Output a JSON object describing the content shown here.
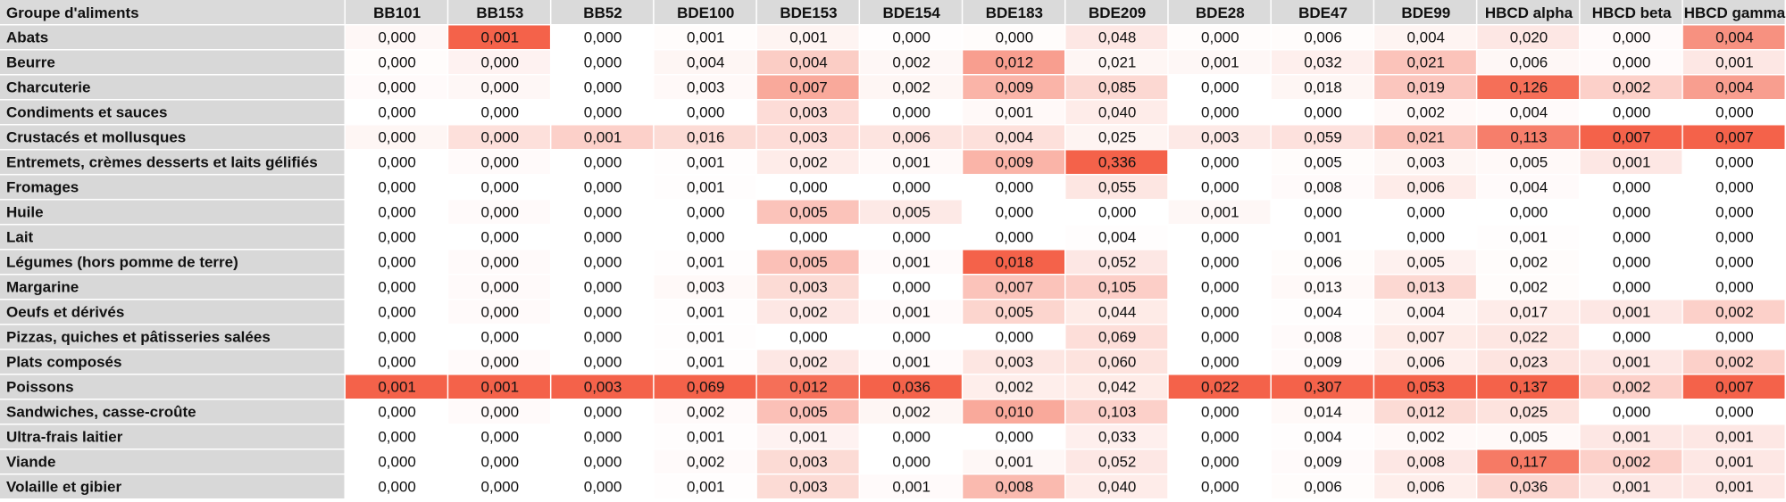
{
  "chart_data": {
    "type": "heatmap",
    "corner_label": "Groupe d'aliments",
    "columns": [
      "BB101",
      "BB153",
      "BB52",
      "BDE100",
      "BDE153",
      "BDE154",
      "BDE183",
      "BDE209",
      "BDE28",
      "BDE47",
      "BDE99",
      "HBCD alpha",
      "HBCD beta",
      "HBCD gamma"
    ],
    "rows": [
      "Abats",
      "Beurre",
      "Charcuterie",
      "Condiments et sauces",
      "Crustacés et mollusques",
      "Entremets, crèmes desserts et laits gélifiés",
      "Fromages",
      "Huile",
      "Lait",
      "Légumes (hors pomme de terre)",
      "Margarine",
      "Oeufs et dérivés",
      "Pizzas, quiches et pâtisseries salées",
      "Plats composés",
      "Poissons",
      "Sandwiches, casse-croûte",
      "Ultra-frais laitier",
      "Viande",
      "Volaille et gibier"
    ],
    "display": [
      [
        "0,000",
        "0,001",
        "0,000",
        "0,001",
        "0,001",
        "0,000",
        "0,000",
        "0,048",
        "0,000",
        "0,006",
        "0,004",
        "0,020",
        "0,000",
        "0,004"
      ],
      [
        "0,000",
        "0,000",
        "0,000",
        "0,004",
        "0,004",
        "0,002",
        "0,012",
        "0,021",
        "0,001",
        "0,032",
        "0,021",
        "0,006",
        "0,000",
        "0,001"
      ],
      [
        "0,000",
        "0,000",
        "0,000",
        "0,003",
        "0,007",
        "0,002",
        "0,009",
        "0,085",
        "0,000",
        "0,018",
        "0,019",
        "0,126",
        "0,002",
        "0,004"
      ],
      [
        "0,000",
        "0,000",
        "0,000",
        "0,000",
        "0,003",
        "0,000",
        "0,001",
        "0,040",
        "0,000",
        "0,000",
        "0,002",
        "0,004",
        "0,000",
        "0,000"
      ],
      [
        "0,000",
        "0,000",
        "0,001",
        "0,016",
        "0,003",
        "0,006",
        "0,004",
        "0,025",
        "0,003",
        "0,059",
        "0,021",
        "0,113",
        "0,007",
        "0,007"
      ],
      [
        "0,000",
        "0,000",
        "0,000",
        "0,001",
        "0,002",
        "0,001",
        "0,009",
        "0,336",
        "0,000",
        "0,005",
        "0,003",
        "0,005",
        "0,001",
        "0,000"
      ],
      [
        "0,000",
        "0,000",
        "0,000",
        "0,001",
        "0,000",
        "0,000",
        "0,000",
        "0,055",
        "0,000",
        "0,008",
        "0,006",
        "0,004",
        "0,000",
        "0,000"
      ],
      [
        "0,000",
        "0,000",
        "0,000",
        "0,000",
        "0,005",
        "0,005",
        "0,000",
        "0,000",
        "0,001",
        "0,000",
        "0,000",
        "0,000",
        "0,000",
        "0,000"
      ],
      [
        "0,000",
        "0,000",
        "0,000",
        "0,000",
        "0,000",
        "0,000",
        "0,000",
        "0,004",
        "0,000",
        "0,001",
        "0,000",
        "0,001",
        "0,000",
        "0,000"
      ],
      [
        "0,000",
        "0,000",
        "0,000",
        "0,001",
        "0,005",
        "0,001",
        "0,018",
        "0,052",
        "0,000",
        "0,006",
        "0,005",
        "0,002",
        "0,000",
        "0,000"
      ],
      [
        "0,000",
        "0,000",
        "0,000",
        "0,003",
        "0,003",
        "0,000",
        "0,007",
        "0,105",
        "0,000",
        "0,013",
        "0,013",
        "0,002",
        "0,000",
        "0,000"
      ],
      [
        "0,000",
        "0,000",
        "0,000",
        "0,001",
        "0,002",
        "0,001",
        "0,005",
        "0,044",
        "0,000",
        "0,004",
        "0,004",
        "0,017",
        "0,001",
        "0,002"
      ],
      [
        "0,000",
        "0,000",
        "0,000",
        "0,001",
        "0,000",
        "0,000",
        "0,000",
        "0,069",
        "0,000",
        "0,008",
        "0,007",
        "0,022",
        "0,000",
        "0,000"
      ],
      [
        "0,000",
        "0,000",
        "0,000",
        "0,001",
        "0,002",
        "0,001",
        "0,003",
        "0,060",
        "0,000",
        "0,009",
        "0,006",
        "0,023",
        "0,001",
        "0,002"
      ],
      [
        "0,001",
        "0,001",
        "0,003",
        "0,069",
        "0,012",
        "0,036",
        "0,002",
        "0,042",
        "0,022",
        "0,307",
        "0,053",
        "0,137",
        "0,002",
        "0,007"
      ],
      [
        "0,000",
        "0,000",
        "0,000",
        "0,002",
        "0,005",
        "0,002",
        "0,010",
        "0,103",
        "0,000",
        "0,014",
        "0,012",
        "0,025",
        "0,000",
        "0,000"
      ],
      [
        "0,000",
        "0,000",
        "0,000",
        "0,001",
        "0,001",
        "0,000",
        "0,000",
        "0,033",
        "0,000",
        "0,004",
        "0,002",
        "0,005",
        "0,001",
        "0,001"
      ],
      [
        "0,000",
        "0,000",
        "0,000",
        "0,002",
        "0,003",
        "0,000",
        "0,001",
        "0,052",
        "0,000",
        "0,009",
        "0,008",
        "0,117",
        "0,002",
        "0,001"
      ],
      [
        "0,000",
        "0,000",
        "0,000",
        "0,001",
        "0,003",
        "0,001",
        "0,008",
        "0,040",
        "0,000",
        "0,006",
        "0,006",
        "0,036",
        "0,001",
        "0,001"
      ]
    ],
    "intensity": [
      [
        0.05,
        1.0,
        0.0,
        0.02,
        0.07,
        0.01,
        0.02,
        0.15,
        0.02,
        0.02,
        0.07,
        0.15,
        0.03,
        0.7
      ],
      [
        0.02,
        0.08,
        0.0,
        0.06,
        0.32,
        0.05,
        0.62,
        0.06,
        0.05,
        0.1,
        0.38,
        0.05,
        0.03,
        0.15
      ],
      [
        0.03,
        0.05,
        0.0,
        0.04,
        0.55,
        0.06,
        0.48,
        0.25,
        0.0,
        0.06,
        0.36,
        0.92,
        0.3,
        0.62
      ],
      [
        0.0,
        0.0,
        0.0,
        0.0,
        0.22,
        0.0,
        0.04,
        0.12,
        0.0,
        0.0,
        0.04,
        0.03,
        0.0,
        0.0
      ],
      [
        0.06,
        0.2,
        0.3,
        0.23,
        0.22,
        0.17,
        0.2,
        0.07,
        0.14,
        0.19,
        0.38,
        0.82,
        1.0,
        1.0
      ],
      [
        0.0,
        0.03,
        0.0,
        0.01,
        0.12,
        0.04,
        0.48,
        1.0,
        0.0,
        0.02,
        0.06,
        0.04,
        0.15,
        0.0
      ],
      [
        0.0,
        0.0,
        0.0,
        0.01,
        0.0,
        0.0,
        0.0,
        0.16,
        0.0,
        0.03,
        0.12,
        0.03,
        0.0,
        0.0
      ],
      [
        0.0,
        0.03,
        0.0,
        0.0,
        0.38,
        0.14,
        0.0,
        0.0,
        0.05,
        0.0,
        0.0,
        0.0,
        0.0,
        0.0
      ],
      [
        0.0,
        0.0,
        0.0,
        0.0,
        0.0,
        0.0,
        0.0,
        0.01,
        0.0,
        0.0,
        0.0,
        0.01,
        0.0,
        0.0
      ],
      [
        0.0,
        0.03,
        0.0,
        0.01,
        0.4,
        0.03,
        1.0,
        0.15,
        0.0,
        0.02,
        0.09,
        0.02,
        0.0,
        0.0
      ],
      [
        0.0,
        0.03,
        0.0,
        0.04,
        0.23,
        0.0,
        0.38,
        0.31,
        0.0,
        0.04,
        0.25,
        0.02,
        0.0,
        0.0
      ],
      [
        0.0,
        0.03,
        0.0,
        0.01,
        0.15,
        0.03,
        0.27,
        0.13,
        0.0,
        0.01,
        0.07,
        0.12,
        0.15,
        0.3
      ],
      [
        0.0,
        0.0,
        0.0,
        0.01,
        0.0,
        0.0,
        0.0,
        0.21,
        0.0,
        0.03,
        0.13,
        0.16,
        0.0,
        0.0
      ],
      [
        0.0,
        0.03,
        0.0,
        0.01,
        0.15,
        0.03,
        0.16,
        0.18,
        0.0,
        0.03,
        0.11,
        0.17,
        0.15,
        0.3
      ],
      [
        1.0,
        1.0,
        1.0,
        1.0,
        0.92,
        1.0,
        0.11,
        0.13,
        1.0,
        1.0,
        1.0,
        1.0,
        0.3,
        1.0
      ],
      [
        0.0,
        0.03,
        0.0,
        0.03,
        0.4,
        0.06,
        0.55,
        0.3,
        0.0,
        0.04,
        0.23,
        0.18,
        0.0,
        0.0
      ],
      [
        0.0,
        0.0,
        0.0,
        0.01,
        0.08,
        0.0,
        0.0,
        0.1,
        0.0,
        0.01,
        0.04,
        0.04,
        0.15,
        0.15
      ],
      [
        0.0,
        0.0,
        0.0,
        0.03,
        0.23,
        0.0,
        0.05,
        0.15,
        0.0,
        0.03,
        0.15,
        0.85,
        0.3,
        0.15
      ],
      [
        0.0,
        0.0,
        0.0,
        0.01,
        0.23,
        0.03,
        0.44,
        0.12,
        0.0,
        0.02,
        0.11,
        0.26,
        0.15,
        0.15
      ]
    ],
    "colors": {
      "low": "#ffffff",
      "high": "#f4624a",
      "row_label_bg": "#d8d8d8",
      "header_bg": "#dadada",
      "grid": "#ffffff"
    }
  }
}
